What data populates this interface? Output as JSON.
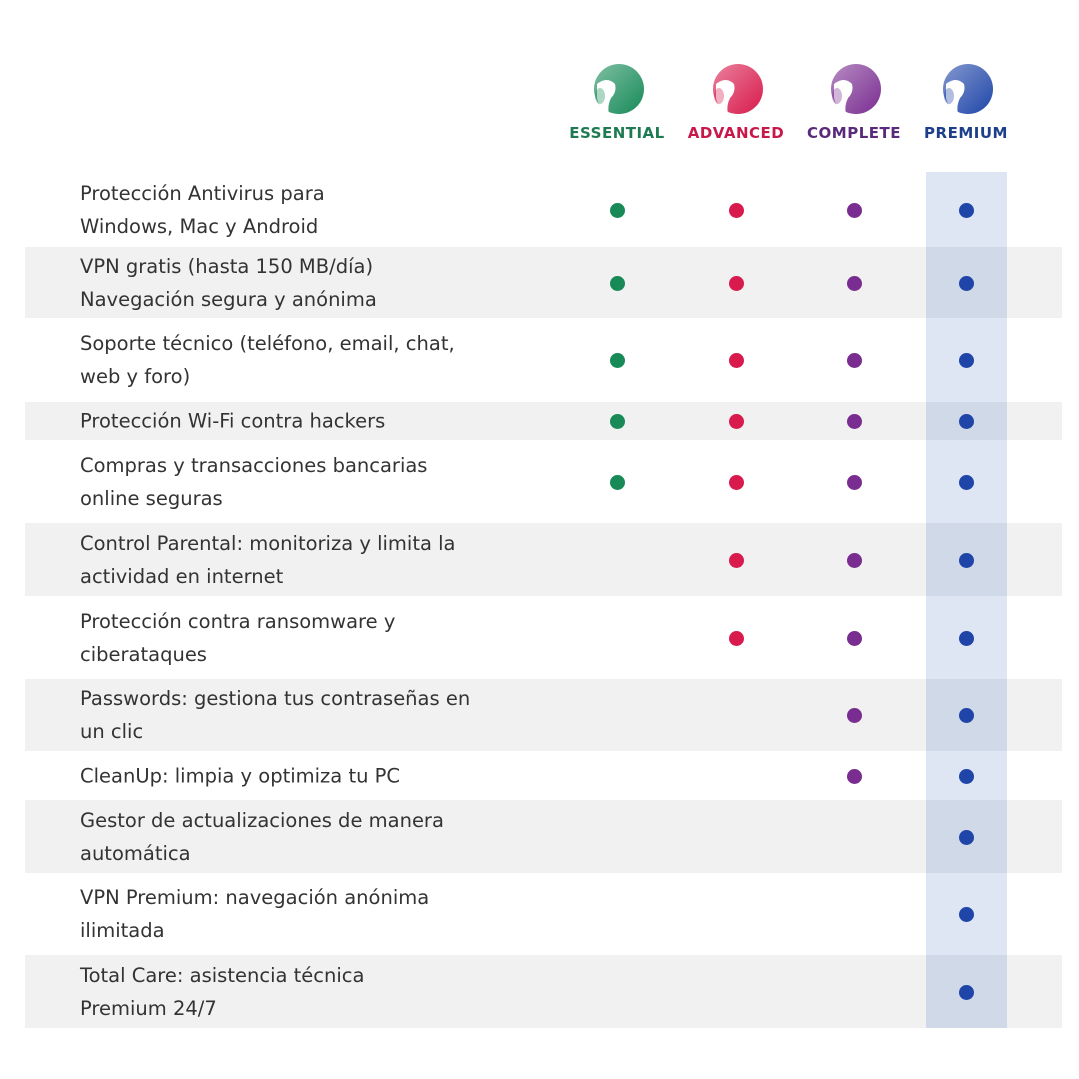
{
  "plans": [
    {
      "name": "ESSENTIAL",
      "color": "#1e7a52",
      "dot": "#178a58",
      "icon": "avast-logo-green"
    },
    {
      "name": "ADVANCED",
      "color": "#c8184a",
      "dot": "#d81a4c",
      "icon": "avast-logo-red"
    },
    {
      "name": "COMPLETE",
      "color": "#5a2a7a",
      "dot": "#7a2d91",
      "icon": "avast-logo-purple"
    },
    {
      "name": "PREMIUM",
      "color": "#1d3f8a",
      "dot": "#1f45a8",
      "icon": "avast-logo-blue"
    }
  ],
  "features": [
    {
      "label": "Protección Antivirus para\nWindows, Mac y Android",
      "included": [
        true,
        true,
        true,
        true
      ]
    },
    {
      "label": "VPN gratis (hasta 150 MB/día)\nNavegación segura y anónima",
      "included": [
        true,
        true,
        true,
        true
      ]
    },
    {
      "label": "Soporte técnico (teléfono, email, chat,\nweb y foro)",
      "included": [
        true,
        true,
        true,
        true
      ]
    },
    {
      "label": "Protección Wi-Fi contra hackers",
      "included": [
        true,
        true,
        true,
        true
      ]
    },
    {
      "label": "Compras y transacciones bancarias\nonline seguras",
      "included": [
        true,
        true,
        true,
        true
      ]
    },
    {
      "label": "Control Parental: monitoriza y limita la\nactividad en internet",
      "included": [
        false,
        true,
        true,
        true
      ]
    },
    {
      "label": "Protección contra ransomware y\nciberataques",
      "included": [
        false,
        true,
        true,
        true
      ]
    },
    {
      "label": "Passwords: gestiona tus contraseñas en\nun clic",
      "included": [
        false,
        false,
        true,
        true
      ]
    },
    {
      "label": "CleanUp: limpia y optimiza tu PC",
      "included": [
        false,
        false,
        true,
        true
      ]
    },
    {
      "label": "Gestor de actualizaciones de manera\nautomática",
      "included": [
        false,
        false,
        false,
        true
      ]
    },
    {
      "label": "VPN Premium: navegación anónima\nilimitada",
      "included": [
        false,
        false,
        false,
        true
      ]
    },
    {
      "label": "Total Care: asistencia técnica\nPremium 24/7",
      "included": [
        false,
        false,
        false,
        true
      ]
    }
  ]
}
